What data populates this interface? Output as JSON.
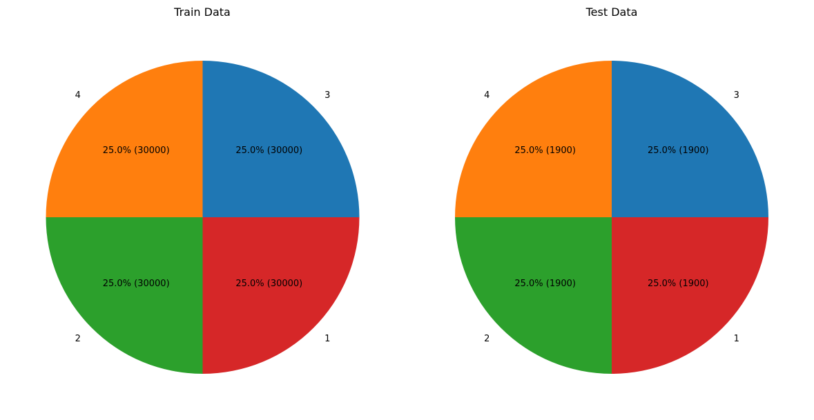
{
  "chart_data": [
    {
      "type": "pie",
      "title": "Train Data",
      "labels": [
        "3",
        "4",
        "2",
        "1"
      ],
      "values": [
        30000,
        30000,
        30000,
        30000
      ],
      "percent_labels": [
        "25.0% (30000)",
        "25.0% (30000)",
        "25.0% (30000)",
        "25.0% (30000)"
      ],
      "colors": [
        "#1f77b4",
        "#ff7f0e",
        "#2ca02c",
        "#d62728"
      ],
      "start_angle_deg": 0,
      "direction": "counterclockwise"
    },
    {
      "type": "pie",
      "title": "Test Data",
      "labels": [
        "3",
        "4",
        "2",
        "1"
      ],
      "values": [
        1900,
        1900,
        1900,
        1900
      ],
      "percent_labels": [
        "25.0% (1900)",
        "25.0% (1900)",
        "25.0% (1900)",
        "25.0% (1900)"
      ],
      "colors": [
        "#1f77b4",
        "#ff7f0e",
        "#2ca02c",
        "#d62728"
      ],
      "start_angle_deg": 0,
      "direction": "counterclockwise"
    }
  ]
}
